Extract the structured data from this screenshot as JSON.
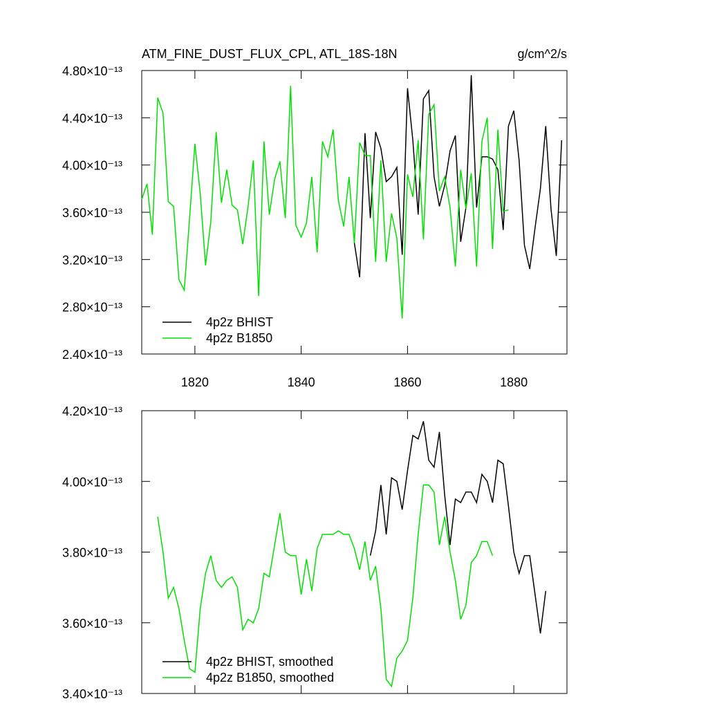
{
  "chart_data": [
    {
      "type": "line",
      "title": "ATM_FINE_DUST_FLUX_CPL, ATL_18S-18N",
      "units": "g/cm^2/s",
      "xlim": [
        1810,
        1890
      ],
      "xticks": [
        1820,
        1840,
        1860,
        1880
      ],
      "ylim": [
        2.4e-13,
        4.8e-13
      ],
      "yticks": [
        {
          "value": 2.4e-13,
          "label": "2.40×10⁻¹³"
        },
        {
          "value": 2.8e-13,
          "label": "2.80×10⁻¹³"
        },
        {
          "value": 3.2e-13,
          "label": "3.20×10⁻¹³"
        },
        {
          "value": 3.6e-13,
          "label": "3.60×10⁻¹³"
        },
        {
          "value": 4e-13,
          "label": "4.00×10⁻¹³"
        },
        {
          "value": 4.4e-13,
          "label": "4.40×10⁻¹³"
        },
        {
          "value": 4.8e-13,
          "label": "4.80×10⁻¹³"
        }
      ],
      "legend": "lower left",
      "series": [
        {
          "name": "4p2z BHIST",
          "color": "#000000",
          "x": [
            1850,
            1851,
            1852,
            1853,
            1854,
            1855,
            1856,
            1857,
            1858,
            1859,
            1860,
            1861,
            1862,
            1863,
            1864,
            1865,
            1866,
            1867,
            1868,
            1869,
            1870,
            1871,
            1872,
            1873,
            1874,
            1875,
            1876,
            1877,
            1878,
            1879,
            1880,
            1881,
            1882,
            1883,
            1884,
            1885,
            1886,
            1887,
            1888,
            1889
          ],
          "values": [
            3.34e-13,
            3.05e-13,
            4.27e-13,
            3.55e-13,
            4.28e-13,
            4.14e-13,
            3.86e-13,
            3.9e-13,
            3.98e-13,
            3.24e-13,
            4.65e-13,
            4.21e-13,
            3.58e-13,
            4.56e-13,
            4.63e-13,
            3.9e-13,
            3.65e-13,
            3.83e-13,
            4.12e-13,
            4.25e-13,
            3.35e-13,
            3.64e-13,
            4.76e-13,
            3.64e-13,
            4.07e-13,
            4.07e-13,
            4.05e-13,
            3.96e-13,
            3.45e-13,
            4.33e-13,
            4.46e-13,
            4.04e-13,
            3.32e-13,
            3.12e-13,
            3.47e-13,
            3.8e-13,
            4.33e-13,
            3.63e-13,
            3.23e-13,
            4.21e-13
          ]
        },
        {
          "name": "4p2z B1850",
          "color": "#00e000",
          "x": [
            1810,
            1811,
            1812,
            1813,
            1814,
            1815,
            1816,
            1817,
            1818,
            1819,
            1820,
            1821,
            1822,
            1823,
            1824,
            1825,
            1826,
            1827,
            1828,
            1829,
            1830,
            1831,
            1832,
            1833,
            1834,
            1835,
            1836,
            1837,
            1838,
            1839,
            1840,
            1841,
            1842,
            1843,
            1844,
            1845,
            1846,
            1847,
            1848,
            1849,
            1850,
            1851,
            1852,
            1853,
            1854,
            1855,
            1856,
            1857,
            1858,
            1859,
            1860,
            1861,
            1862,
            1863,
            1864,
            1865,
            1866,
            1867,
            1868,
            1869,
            1870,
            1871,
            1872,
            1873,
            1874,
            1875,
            1876,
            1877,
            1878,
            1879
          ],
          "values": [
            3.71e-13,
            3.84e-13,
            3.41e-13,
            4.57e-13,
            4.44e-13,
            3.69e-13,
            3.65e-13,
            3.03e-13,
            2.94e-13,
            3.55e-13,
            4.18e-13,
            3.76e-13,
            3.15e-13,
            3.52e-13,
            4.28e-13,
            3.68e-13,
            3.96e-13,
            3.66e-13,
            3.62e-13,
            3.33e-13,
            3.65e-13,
            4.04e-13,
            2.89e-13,
            4.2e-13,
            3.58e-13,
            3.88e-13,
            4.03e-13,
            3.55e-13,
            4.67e-13,
            3.49e-13,
            3.39e-13,
            3.51e-13,
            3.9e-13,
            3.26e-13,
            4.2e-13,
            4.07e-13,
            4.3e-13,
            3.7e-13,
            3.48e-13,
            3.9e-13,
            3.34e-13,
            4.19e-13,
            4.08e-13,
            4.08e-13,
            3.18e-13,
            4.04e-13,
            3.18e-13,
            3.59e-13,
            3.38e-13,
            2.7e-13,
            3.92e-13,
            3.73e-13,
            4.21e-13,
            3.37e-13,
            4.43e-13,
            4.51e-13,
            3.78e-13,
            3.9e-13,
            3.64e-13,
            3.14e-13,
            3.96e-13,
            3.63e-13,
            3.93e-13,
            3.14e-13,
            4.2e-13,
            4.4e-13,
            3.29e-13,
            4.3e-13,
            3.61e-13,
            3.62e-13
          ]
        }
      ]
    },
    {
      "type": "line",
      "xlim": [
        1810,
        1890
      ],
      "xticks": [
        1820,
        1840,
        1860,
        1880
      ],
      "ylim": [
        3.4e-13,
        4.2e-13
      ],
      "yticks": [
        {
          "value": 3.4e-13,
          "label": "3.40×10⁻¹³"
        },
        {
          "value": 3.6e-13,
          "label": "3.60×10⁻¹³"
        },
        {
          "value": 3.8e-13,
          "label": "3.80×10⁻¹³"
        },
        {
          "value": 4e-13,
          "label": "4.00×10⁻¹³"
        },
        {
          "value": 4.2e-13,
          "label": "4.20×10⁻¹³"
        }
      ],
      "legend": "lower left",
      "series": [
        {
          "name": "4p2z BHIST, smoothed",
          "color": "#000000",
          "x": [
            1853,
            1854,
            1855,
            1856,
            1857,
            1858,
            1859,
            1860,
            1861,
            1862,
            1863,
            1864,
            1865,
            1866,
            1867,
            1868,
            1869,
            1870,
            1871,
            1872,
            1873,
            1874,
            1875,
            1876,
            1877,
            1878,
            1879,
            1880,
            1881,
            1882,
            1883,
            1884,
            1885,
            1886
          ],
          "values": [
            3.79e-13,
            3.86e-13,
            3.99e-13,
            3.85e-13,
            4.01e-13,
            4e-13,
            3.92e-13,
            4.03e-13,
            4.13e-13,
            4.12e-13,
            4.17e-13,
            4.06e-13,
            4.04e-13,
            4.14e-13,
            3.96e-13,
            3.82e-13,
            3.95e-13,
            3.94e-13,
            3.97e-13,
            3.97e-13,
            3.94e-13,
            4.02e-13,
            4e-13,
            3.94e-13,
            4.06e-13,
            4.05e-13,
            3.93e-13,
            3.8e-13,
            3.74e-13,
            3.79e-13,
            3.79e-13,
            3.68e-13,
            3.57e-13,
            3.69e-13
          ]
        },
        {
          "name": "4p2z B1850, smoothed",
          "color": "#00e000",
          "x": [
            1813,
            1814,
            1815,
            1816,
            1817,
            1818,
            1819,
            1820,
            1821,
            1822,
            1823,
            1824,
            1825,
            1826,
            1827,
            1828,
            1829,
            1830,
            1831,
            1832,
            1833,
            1834,
            1835,
            1836,
            1837,
            1838,
            1839,
            1840,
            1841,
            1842,
            1843,
            1844,
            1845,
            1846,
            1847,
            1848,
            1849,
            1850,
            1851,
            1852,
            1853,
            1854,
            1855,
            1856,
            1857,
            1858,
            1859,
            1860,
            1861,
            1862,
            1863,
            1864,
            1865,
            1866,
            1867,
            1868,
            1869,
            1870,
            1871,
            1872,
            1873,
            1874,
            1875,
            1876
          ],
          "values": [
            3.9e-13,
            3.8e-13,
            3.67e-13,
            3.7e-13,
            3.64e-13,
            3.55e-13,
            3.47e-13,
            3.46e-13,
            3.64e-13,
            3.74e-13,
            3.79e-13,
            3.72e-13,
            3.7e-13,
            3.72e-13,
            3.73e-13,
            3.7e-13,
            3.58e-13,
            3.61e-13,
            3.6e-13,
            3.64e-13,
            3.74e-13,
            3.73e-13,
            3.82e-13,
            3.91e-13,
            3.8e-13,
            3.79e-13,
            3.79e-13,
            3.68e-13,
            3.78e-13,
            3.69e-13,
            3.81e-13,
            3.85e-13,
            3.85e-13,
            3.85e-13,
            3.86e-13,
            3.85e-13,
            3.85e-13,
            3.81e-13,
            3.75e-13,
            3.83e-13,
            3.72e-13,
            3.76e-13,
            3.64e-13,
            3.44e-13,
            3.42e-13,
            3.5e-13,
            3.52e-13,
            3.55e-13,
            3.67e-13,
            3.85e-13,
            3.99e-13,
            3.99e-13,
            3.97e-13,
            3.82e-13,
            3.9e-13,
            3.8e-13,
            3.72e-13,
            3.61e-13,
            3.65e-13,
            3.77e-13,
            3.79e-13,
            3.83e-13,
            3.83e-13,
            3.79e-13
          ]
        }
      ]
    }
  ]
}
